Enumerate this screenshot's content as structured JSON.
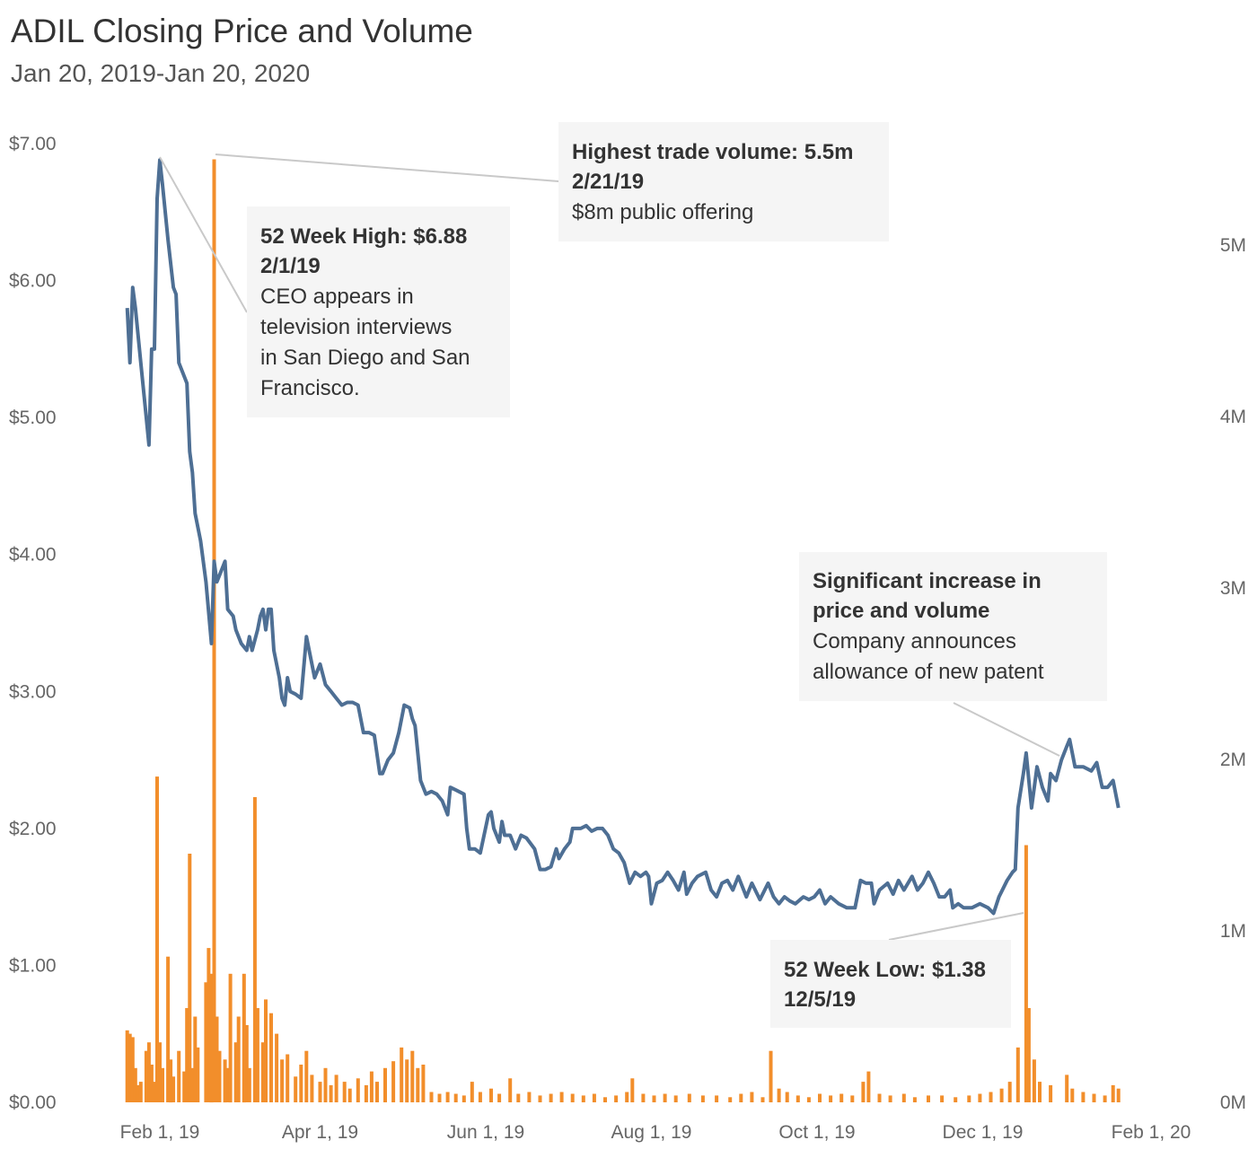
{
  "chart_data": {
    "type": "line",
    "title": "ADIL Closing Price and Volume",
    "subtitle": "Jan 20, 2019-Jan 20, 2020",
    "x_axis": {
      "ticks": [
        "Feb 1, 19",
        "Apr 1, 19",
        "Jun 1, 19",
        "Aug 1, 19",
        "Oct 1, 19",
        "Dec 1, 19",
        "Feb 1, 20"
      ]
    },
    "y_left": {
      "ticks": [
        "$0.00",
        "$1.00",
        "$2.00",
        "$3.00",
        "$4.00",
        "$5.00",
        "$6.00",
        "$7.00"
      ],
      "range": [
        0,
        7
      ]
    },
    "y_right": {
      "ticks": [
        "0M",
        "1M",
        "2M",
        "3M",
        "4M",
        "5M"
      ],
      "range": [
        0,
        5.5
      ]
    },
    "colors": {
      "price": "#4e6f94",
      "volume": "#f28e2b",
      "annotation_bg": "#f5f5f5"
    },
    "price_series": [
      [
        "2019-01-20",
        5.8
      ],
      [
        "2019-01-21",
        5.4
      ],
      [
        "2019-01-22",
        5.95
      ],
      [
        "2019-01-23",
        5.8
      ],
      [
        "2019-01-25",
        5.4
      ],
      [
        "2019-01-27",
        5.0
      ],
      [
        "2019-01-28",
        4.8
      ],
      [
        "2019-01-29",
        5.5
      ],
      [
        "2019-01-30",
        5.5
      ],
      [
        "2019-01-31",
        6.6
      ],
      [
        "2019-02-01",
        6.88
      ],
      [
        "2019-02-02",
        6.7
      ],
      [
        "2019-02-04",
        6.3
      ],
      [
        "2019-02-06",
        5.95
      ],
      [
        "2019-02-07",
        5.9
      ],
      [
        "2019-02-08",
        5.4
      ],
      [
        "2019-02-10",
        5.3
      ],
      [
        "2019-02-11",
        5.25
      ],
      [
        "2019-02-12",
        4.75
      ],
      [
        "2019-02-13",
        4.6
      ],
      [
        "2019-02-14",
        4.3
      ],
      [
        "2019-02-16",
        4.1
      ],
      [
        "2019-02-18",
        3.8
      ],
      [
        "2019-02-20",
        3.35
      ],
      [
        "2019-02-21",
        3.95
      ],
      [
        "2019-02-22",
        3.8
      ],
      [
        "2019-02-24",
        3.9
      ],
      [
        "2019-02-25",
        3.95
      ],
      [
        "2019-02-26",
        3.6
      ],
      [
        "2019-02-28",
        3.55
      ],
      [
        "2019-03-01",
        3.45
      ],
      [
        "2019-03-03",
        3.35
      ],
      [
        "2019-03-05",
        3.3
      ],
      [
        "2019-03-06",
        3.4
      ],
      [
        "2019-03-07",
        3.3
      ],
      [
        "2019-03-09",
        3.45
      ],
      [
        "2019-03-10",
        3.55
      ],
      [
        "2019-03-11",
        3.6
      ],
      [
        "2019-03-12",
        3.45
      ],
      [
        "2019-03-13",
        3.6
      ],
      [
        "2019-03-14",
        3.6
      ],
      [
        "2019-03-15",
        3.3
      ],
      [
        "2019-03-17",
        3.1
      ],
      [
        "2019-03-18",
        2.95
      ],
      [
        "2019-03-19",
        2.9
      ],
      [
        "2019-03-20",
        3.1
      ],
      [
        "2019-03-21",
        3.0
      ],
      [
        "2019-03-23",
        2.98
      ],
      [
        "2019-03-25",
        2.95
      ],
      [
        "2019-03-27",
        3.4
      ],
      [
        "2019-03-29",
        3.2
      ],
      [
        "2019-03-30",
        3.1
      ],
      [
        "2019-04-01",
        3.2
      ],
      [
        "2019-04-03",
        3.05
      ],
      [
        "2019-04-05",
        3.0
      ],
      [
        "2019-04-07",
        2.95
      ],
      [
        "2019-04-09",
        2.9
      ],
      [
        "2019-04-11",
        2.92
      ],
      [
        "2019-04-13",
        2.92
      ],
      [
        "2019-04-15",
        2.9
      ],
      [
        "2019-04-17",
        2.7
      ],
      [
        "2019-04-19",
        2.7
      ],
      [
        "2019-04-21",
        2.68
      ],
      [
        "2019-04-23",
        2.4
      ],
      [
        "2019-04-24",
        2.4
      ],
      [
        "2019-04-26",
        2.5
      ],
      [
        "2019-04-28",
        2.55
      ],
      [
        "2019-04-30",
        2.7
      ],
      [
        "2019-05-02",
        2.9
      ],
      [
        "2019-05-04",
        2.88
      ],
      [
        "2019-05-05",
        2.8
      ],
      [
        "2019-05-06",
        2.75
      ],
      [
        "2019-05-08",
        2.35
      ],
      [
        "2019-05-10",
        2.25
      ],
      [
        "2019-05-12",
        2.27
      ],
      [
        "2019-05-14",
        2.25
      ],
      [
        "2019-05-16",
        2.2
      ],
      [
        "2019-05-18",
        2.1
      ],
      [
        "2019-05-19",
        2.3
      ],
      [
        "2019-05-21",
        2.28
      ],
      [
        "2019-05-24",
        2.25
      ],
      [
        "2019-05-25",
        2.0
      ],
      [
        "2019-05-26",
        1.85
      ],
      [
        "2019-05-28",
        1.85
      ],
      [
        "2019-05-30",
        1.82
      ],
      [
        "2019-06-02",
        2.1
      ],
      [
        "2019-06-03",
        2.12
      ],
      [
        "2019-06-04",
        2.0
      ],
      [
        "2019-06-06",
        1.9
      ],
      [
        "2019-06-07",
        2.05
      ],
      [
        "2019-06-08",
        1.95
      ],
      [
        "2019-06-10",
        1.95
      ],
      [
        "2019-06-12",
        1.85
      ],
      [
        "2019-06-14",
        1.95
      ],
      [
        "2019-06-16",
        1.93
      ],
      [
        "2019-06-19",
        1.85
      ],
      [
        "2019-06-21",
        1.7
      ],
      [
        "2019-06-23",
        1.7
      ],
      [
        "2019-06-25",
        1.72
      ],
      [
        "2019-06-27",
        1.85
      ],
      [
        "2019-06-28",
        1.78
      ],
      [
        "2019-06-30",
        1.85
      ],
      [
        "2019-07-02",
        1.9
      ],
      [
        "2019-07-03",
        2.0
      ],
      [
        "2019-07-06",
        2.0
      ],
      [
        "2019-07-08",
        2.02
      ],
      [
        "2019-07-10",
        1.98
      ],
      [
        "2019-07-12",
        2.0
      ],
      [
        "2019-07-14",
        2.0
      ],
      [
        "2019-07-16",
        1.95
      ],
      [
        "2019-07-18",
        1.85
      ],
      [
        "2019-07-20",
        1.82
      ],
      [
        "2019-07-22",
        1.75
      ],
      [
        "2019-07-24",
        1.6
      ],
      [
        "2019-07-26",
        1.68
      ],
      [
        "2019-07-28",
        1.65
      ],
      [
        "2019-07-30",
        1.68
      ],
      [
        "2019-07-31",
        1.65
      ],
      [
        "2019-08-01",
        1.45
      ],
      [
        "2019-08-03",
        1.6
      ],
      [
        "2019-08-05",
        1.62
      ],
      [
        "2019-08-07",
        1.68
      ],
      [
        "2019-08-09",
        1.62
      ],
      [
        "2019-08-11",
        1.55
      ],
      [
        "2019-08-13",
        1.68
      ],
      [
        "2019-08-14",
        1.52
      ],
      [
        "2019-08-16",
        1.6
      ],
      [
        "2019-08-18",
        1.65
      ],
      [
        "2019-08-21",
        1.68
      ],
      [
        "2019-08-23",
        1.55
      ],
      [
        "2019-08-25",
        1.5
      ],
      [
        "2019-08-27",
        1.6
      ],
      [
        "2019-08-29",
        1.62
      ],
      [
        "2019-08-31",
        1.55
      ],
      [
        "2019-09-02",
        1.65
      ],
      [
        "2019-09-05",
        1.5
      ],
      [
        "2019-09-07",
        1.6
      ],
      [
        "2019-09-10",
        1.48
      ],
      [
        "2019-09-13",
        1.6
      ],
      [
        "2019-09-15",
        1.5
      ],
      [
        "2019-09-17",
        1.45
      ],
      [
        "2019-09-19",
        1.5
      ],
      [
        "2019-09-21",
        1.47
      ],
      [
        "2019-09-23",
        1.45
      ],
      [
        "2019-09-26",
        1.5
      ],
      [
        "2019-09-28",
        1.48
      ],
      [
        "2019-09-30",
        1.5
      ],
      [
        "2019-10-02",
        1.55
      ],
      [
        "2019-10-04",
        1.45
      ],
      [
        "2019-10-06",
        1.5
      ],
      [
        "2019-10-09",
        1.45
      ],
      [
        "2019-10-12",
        1.42
      ],
      [
        "2019-10-15",
        1.42
      ],
      [
        "2019-10-17",
        1.62
      ],
      [
        "2019-10-19",
        1.6
      ],
      [
        "2019-10-21",
        1.6
      ],
      [
        "2019-10-22",
        1.45
      ],
      [
        "2019-10-24",
        1.55
      ],
      [
        "2019-10-27",
        1.6
      ],
      [
        "2019-10-29",
        1.52
      ],
      [
        "2019-10-31",
        1.62
      ],
      [
        "2019-11-02",
        1.55
      ],
      [
        "2019-11-05",
        1.65
      ],
      [
        "2019-11-07",
        1.55
      ],
      [
        "2019-11-09",
        1.6
      ],
      [
        "2019-11-11",
        1.68
      ],
      [
        "2019-11-13",
        1.6
      ],
      [
        "2019-11-15",
        1.5
      ],
      [
        "2019-11-17",
        1.5
      ],
      [
        "2019-11-19",
        1.55
      ],
      [
        "2019-11-20",
        1.42
      ],
      [
        "2019-11-22",
        1.45
      ],
      [
        "2019-11-24",
        1.42
      ],
      [
        "2019-11-27",
        1.42
      ],
      [
        "2019-11-30",
        1.45
      ],
      [
        "2019-12-03",
        1.42
      ],
      [
        "2019-12-05",
        1.38
      ],
      [
        "2019-12-07",
        1.5
      ],
      [
        "2019-12-10",
        1.62
      ],
      [
        "2019-12-12",
        1.68
      ],
      [
        "2019-12-13",
        1.7
      ],
      [
        "2019-12-14",
        2.15
      ],
      [
        "2019-12-16",
        2.4
      ],
      [
        "2019-12-17",
        2.55
      ],
      [
        "2019-12-19",
        2.15
      ],
      [
        "2019-12-21",
        2.45
      ],
      [
        "2019-12-23",
        2.3
      ],
      [
        "2019-12-25",
        2.2
      ],
      [
        "2019-12-26",
        2.4
      ],
      [
        "2019-12-28",
        2.35
      ],
      [
        "2019-12-30",
        2.5
      ],
      [
        "2020-01-01",
        2.6
      ],
      [
        "2020-01-02",
        2.65
      ],
      [
        "2020-01-04",
        2.45
      ],
      [
        "2020-01-07",
        2.45
      ],
      [
        "2020-01-10",
        2.42
      ],
      [
        "2020-01-12",
        2.48
      ],
      [
        "2020-01-14",
        2.3
      ],
      [
        "2020-01-16",
        2.3
      ],
      [
        "2020-01-18",
        2.35
      ],
      [
        "2020-01-19",
        2.25
      ],
      [
        "2020-01-20",
        2.15
      ]
    ],
    "volume_series": [
      [
        "2019-01-20",
        0.42
      ],
      [
        "2019-01-21",
        0.4
      ],
      [
        "2019-01-22",
        0.38
      ],
      [
        "2019-01-23",
        0.2
      ],
      [
        "2019-01-24",
        0.1
      ],
      [
        "2019-01-25",
        0.12
      ],
      [
        "2019-01-27",
        0.3
      ],
      [
        "2019-01-28",
        0.35
      ],
      [
        "2019-01-29",
        0.22
      ],
      [
        "2019-01-30",
        0.12
      ],
      [
        "2019-01-31",
        1.9
      ],
      [
        "2019-02-01",
        0.35
      ],
      [
        "2019-02-02",
        0.2
      ],
      [
        "2019-02-04",
        0.85
      ],
      [
        "2019-02-05",
        0.25
      ],
      [
        "2019-02-06",
        0.15
      ],
      [
        "2019-02-08",
        0.3
      ],
      [
        "2019-02-10",
        0.18
      ],
      [
        "2019-02-11",
        0.55
      ],
      [
        "2019-02-12",
        1.45
      ],
      [
        "2019-02-13",
        0.2
      ],
      [
        "2019-02-14",
        0.5
      ],
      [
        "2019-02-15",
        0.32
      ],
      [
        "2019-02-18",
        0.7
      ],
      [
        "2019-02-19",
        0.9
      ],
      [
        "2019-02-20",
        0.75
      ],
      [
        "2019-02-21",
        5.5
      ],
      [
        "2019-02-22",
        0.5
      ],
      [
        "2019-02-23",
        0.3
      ],
      [
        "2019-02-25",
        0.25
      ],
      [
        "2019-02-26",
        0.2
      ],
      [
        "2019-02-27",
        0.75
      ],
      [
        "2019-03-01",
        0.35
      ],
      [
        "2019-03-02",
        0.5
      ],
      [
        "2019-03-04",
        0.75
      ],
      [
        "2019-03-05",
        0.45
      ],
      [
        "2019-03-06",
        0.2
      ],
      [
        "2019-03-08",
        1.78
      ],
      [
        "2019-03-09",
        0.55
      ],
      [
        "2019-03-11",
        0.35
      ],
      [
        "2019-03-12",
        0.6
      ],
      [
        "2019-03-14",
        0.52
      ],
      [
        "2019-03-16",
        0.4
      ],
      [
        "2019-03-18",
        0.25
      ],
      [
        "2019-03-20",
        0.28
      ],
      [
        "2019-03-23",
        0.15
      ],
      [
        "2019-03-25",
        0.22
      ],
      [
        "2019-03-27",
        0.3
      ],
      [
        "2019-03-29",
        0.16
      ],
      [
        "2019-04-01",
        0.12
      ],
      [
        "2019-04-03",
        0.2
      ],
      [
        "2019-04-05",
        0.1
      ],
      [
        "2019-04-07",
        0.16
      ],
      [
        "2019-04-10",
        0.12
      ],
      [
        "2019-04-12",
        0.08
      ],
      [
        "2019-04-15",
        0.14
      ],
      [
        "2019-04-18",
        0.1
      ],
      [
        "2019-04-20",
        0.18
      ],
      [
        "2019-04-22",
        0.12
      ],
      [
        "2019-04-25",
        0.2
      ],
      [
        "2019-04-28",
        0.24
      ],
      [
        "2019-05-01",
        0.32
      ],
      [
        "2019-05-03",
        0.25
      ],
      [
        "2019-05-05",
        0.3
      ],
      [
        "2019-05-07",
        0.2
      ],
      [
        "2019-05-09",
        0.22
      ],
      [
        "2019-05-12",
        0.06
      ],
      [
        "2019-05-15",
        0.05
      ],
      [
        "2019-05-18",
        0.06
      ],
      [
        "2019-05-21",
        0.05
      ],
      [
        "2019-05-24",
        0.04
      ],
      [
        "2019-05-27",
        0.12
      ],
      [
        "2019-05-30",
        0.06
      ],
      [
        "2019-06-03",
        0.08
      ],
      [
        "2019-06-06",
        0.05
      ],
      [
        "2019-06-10",
        0.14
      ],
      [
        "2019-06-13",
        0.05
      ],
      [
        "2019-06-17",
        0.06
      ],
      [
        "2019-06-21",
        0.04
      ],
      [
        "2019-06-25",
        0.05
      ],
      [
        "2019-06-29",
        0.06
      ],
      [
        "2019-07-03",
        0.05
      ],
      [
        "2019-07-07",
        0.04
      ],
      [
        "2019-07-11",
        0.05
      ],
      [
        "2019-07-15",
        0.03
      ],
      [
        "2019-07-19",
        0.04
      ],
      [
        "2019-07-23",
        0.06
      ],
      [
        "2019-07-25",
        0.14
      ],
      [
        "2019-07-29",
        0.05
      ],
      [
        "2019-08-02",
        0.04
      ],
      [
        "2019-08-06",
        0.05
      ],
      [
        "2019-08-10",
        0.04
      ],
      [
        "2019-08-15",
        0.05
      ],
      [
        "2019-08-20",
        0.04
      ],
      [
        "2019-08-25",
        0.04
      ],
      [
        "2019-08-30",
        0.03
      ],
      [
        "2019-09-03",
        0.05
      ],
      [
        "2019-09-07",
        0.06
      ],
      [
        "2019-09-11",
        0.03
      ],
      [
        "2019-09-14",
        0.3
      ],
      [
        "2019-09-17",
        0.08
      ],
      [
        "2019-09-20",
        0.06
      ],
      [
        "2019-09-24",
        0.04
      ],
      [
        "2019-09-28",
        0.03
      ],
      [
        "2019-10-02",
        0.05
      ],
      [
        "2019-10-06",
        0.04
      ],
      [
        "2019-10-10",
        0.05
      ],
      [
        "2019-10-14",
        0.04
      ],
      [
        "2019-10-18",
        0.12
      ],
      [
        "2019-10-20",
        0.18
      ],
      [
        "2019-10-24",
        0.05
      ],
      [
        "2019-10-28",
        0.04
      ],
      [
        "2019-11-02",
        0.05
      ],
      [
        "2019-11-06",
        0.03
      ],
      [
        "2019-11-11",
        0.04
      ],
      [
        "2019-11-16",
        0.04
      ],
      [
        "2019-11-21",
        0.03
      ],
      [
        "2019-11-26",
        0.04
      ],
      [
        "2019-11-30",
        0.05
      ],
      [
        "2019-12-04",
        0.06
      ],
      [
        "2019-12-08",
        0.08
      ],
      [
        "2019-12-11",
        0.12
      ],
      [
        "2019-12-14",
        0.32
      ],
      [
        "2019-12-17",
        1.5
      ],
      [
        "2019-12-18",
        0.55
      ],
      [
        "2019-12-20",
        0.25
      ],
      [
        "2019-12-22",
        0.12
      ],
      [
        "2019-12-26",
        0.1
      ],
      [
        "2020-01-01",
        0.16
      ],
      [
        "2020-01-03",
        0.08
      ],
      [
        "2020-01-07",
        0.06
      ],
      [
        "2020-01-11",
        0.05
      ],
      [
        "2020-01-15",
        0.04
      ],
      [
        "2020-01-18",
        0.1
      ],
      [
        "2020-01-20",
        0.08
      ]
    ],
    "annotations": [
      {
        "title": "52 Week High: $6.88",
        "date": "2/1/19",
        "text": [
          "CEO appears in",
          "television interviews",
          "in San Diego and San",
          "Francisco."
        ]
      },
      {
        "title": "Highest trade volume: 5.5m",
        "date": "2/21/19",
        "text": [
          "$8m public offering"
        ]
      },
      {
        "title": "Significant increase in",
        "title2": "price and volume",
        "text": [
          "Company announces",
          "allowance of new patent"
        ]
      },
      {
        "title": "52 Week Low: $1.38",
        "date": "12/5/19",
        "text": []
      }
    ]
  }
}
